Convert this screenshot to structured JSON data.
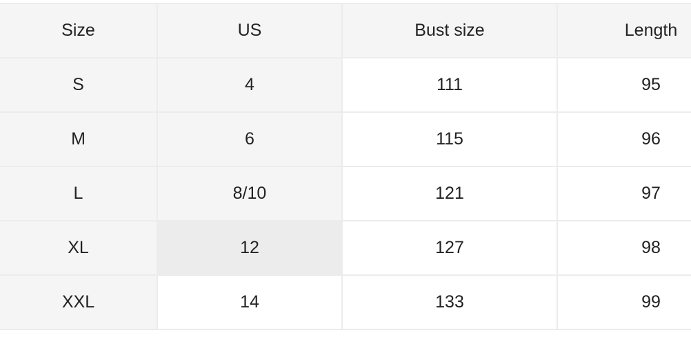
{
  "table": {
    "headers": [
      "Size",
      "US",
      "Bust size",
      "Length"
    ],
    "rows": [
      [
        "S",
        "4",
        "111",
        "95"
      ],
      [
        "M",
        "6",
        "115",
        "96"
      ],
      [
        "L",
        "8/10",
        "121",
        "97"
      ],
      [
        "XL",
        "12",
        "127",
        "98"
      ],
      [
        "XXL",
        "14",
        "133",
        "99"
      ]
    ]
  },
  "colors": {
    "header_bg": "#f5f5f5",
    "hover_bg": "#ececec",
    "border": "#ececec"
  }
}
